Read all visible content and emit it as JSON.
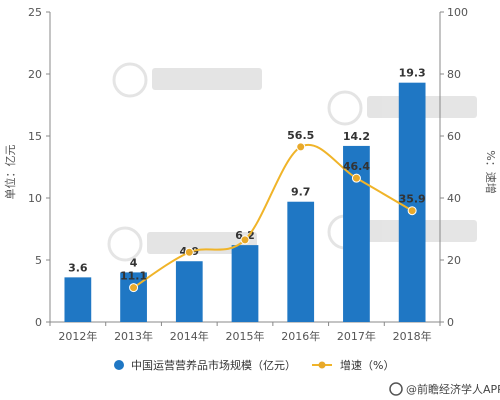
{
  "chart_data": {
    "type": "bar",
    "categories": [
      "2012年",
      "2013年",
      "2014年",
      "2015年",
      "2016年",
      "2017年",
      "2018年"
    ],
    "series": [
      {
        "name": "中国运营营养品市场规模（亿元）",
        "type": "bar",
        "axis": "left",
        "values": [
          3.6,
          4,
          4.9,
          6.2,
          9.7,
          14.2,
          19.3
        ],
        "labels": [
          "3.6",
          "4",
          "4.9",
          "6.2",
          "9.7",
          "14.2",
          "19.3"
        ]
      },
      {
        "name": "增速（%）",
        "type": "line",
        "axis": "right",
        "values": [
          null,
          11.1,
          22.5,
          26.5,
          56.5,
          46.4,
          35.9
        ],
        "labels": [
          "",
          "11.1",
          "",
          "",
          "56.5",
          "46.4",
          "35.9"
        ]
      }
    ],
    "ylabel": "单位：亿元",
    "y2label": "%：速增",
    "ylim": [
      0,
      25
    ],
    "y_ticks": [
      0,
      5,
      10,
      15,
      20,
      25
    ],
    "y2lim": [
      0,
      100
    ],
    "y2_ticks": [
      0,
      20,
      40,
      60,
      80,
      100
    ],
    "grid": false,
    "legend_position": "bottom",
    "colors": {
      "bar": "#1f77c4",
      "line": "#f0b429",
      "marker": "#e8a92a"
    }
  },
  "footer": {
    "source": "@前瞻经济学人APP"
  }
}
